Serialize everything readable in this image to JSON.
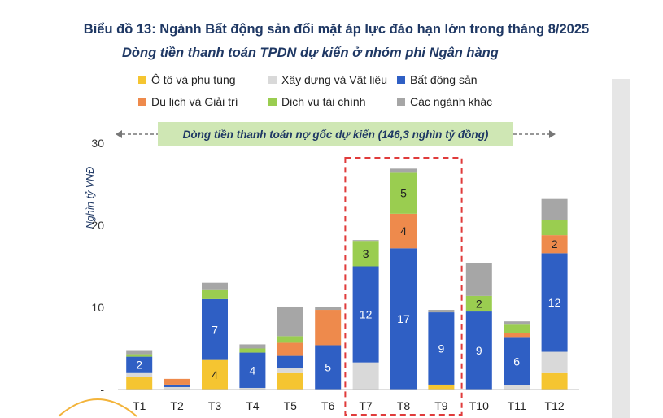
{
  "title": "Biểu đồ 13: Ngành Bất động sản đối mặt áp lực đáo hạn lớn trong tháng 8/2025",
  "subtitle": "Dòng tiền thanh toán TPDN dự kiến ở nhóm phi Ngân hàng",
  "banner_text": "Dòng tiền thanh toán nợ gốc dự kiến (146,3 nghìn tỷ đồng)",
  "highlight_months": [
    "T7",
    "T8",
    "T9"
  ],
  "legend": [
    {
      "label": "Ô tô và phụ tùng",
      "color": "#f5c531"
    },
    {
      "label": "Xây dựng và Vật liệu",
      "color": "#d9d9d9"
    },
    {
      "label": "Bất động sản",
      "color": "#2f5fc4"
    },
    {
      "label": "Du lịch và Giải trí",
      "color": "#ee8a4c"
    },
    {
      "label": "Dịch vụ tài chính",
      "color": "#9acd50"
    },
    {
      "label": "Các ngành khác",
      "color": "#a6a6a6"
    }
  ],
  "chart_data": {
    "type": "bar",
    "stacked": true,
    "title": "Dòng tiền thanh toán TPDN dự kiến ở nhóm phi Ngân hàng",
    "ylabel": "Nghìn tỷ VNĐ",
    "ylim": [
      0,
      30
    ],
    "yticks": [
      "-",
      "10",
      "20",
      "30"
    ],
    "categories": [
      "T1",
      "T2",
      "T3",
      "T4",
      "T5",
      "T6",
      "T7",
      "T8",
      "T9",
      "T10",
      "T11",
      "T12"
    ],
    "series": [
      {
        "name": "Ô tô và phụ tùng",
        "color": "#f5c531",
        "values": [
          1.5,
          0,
          3.6,
          0,
          2.0,
          0,
          0,
          0,
          0.6,
          0,
          0,
          2.0
        ]
      },
      {
        "name": "Xây dựng và Vật liệu",
        "color": "#d9d9d9",
        "values": [
          0.5,
          0.3,
          0,
          0.2,
          0.6,
          0,
          3.3,
          0,
          0,
          0,
          0.5,
          2.6
        ]
      },
      {
        "name": "Bất động sản",
        "color": "#2f5fc4",
        "values": [
          2.0,
          0.3,
          7.4,
          4.3,
          1.5,
          5.4,
          11.7,
          17.2,
          8.8,
          9.5,
          5.8,
          12.0
        ]
      },
      {
        "name": "Du lịch và Giải trí",
        "color": "#ee8a4c",
        "values": [
          0,
          0.7,
          0,
          0,
          1.6,
          4.3,
          0,
          4.2,
          0,
          0,
          0.6,
          2.2
        ]
      },
      {
        "name": "Dịch vụ tài chính",
        "color": "#9acd50",
        "values": [
          0.3,
          0,
          1.2,
          0.5,
          0.8,
          0,
          3.1,
          5.0,
          0,
          1.9,
          1.0,
          1.8
        ]
      },
      {
        "name": "Các ngành khác",
        "color": "#a6a6a6",
        "values": [
          0.5,
          0,
          0.8,
          0.5,
          3.6,
          0.3,
          0.1,
          0.5,
          0.3,
          4.0,
          0.4,
          2.6
        ]
      }
    ],
    "data_labels": [
      {
        "month": "T1",
        "series": "Bất động sản",
        "text": "2"
      },
      {
        "month": "T3",
        "series": "Ô tô và phụ tùng",
        "text": "4"
      },
      {
        "month": "T3",
        "series": "Bất động sản",
        "text": "7"
      },
      {
        "month": "T4",
        "series": "Bất động sản",
        "text": "4"
      },
      {
        "month": "T6",
        "series": "Bất động sản",
        "text": "5"
      },
      {
        "month": "T7",
        "series": "Bất động sản",
        "text": "12"
      },
      {
        "month": "T7",
        "series": "Dịch vụ tài chính",
        "text": "3"
      },
      {
        "month": "T8",
        "series": "Bất động sản",
        "text": "17"
      },
      {
        "month": "T8",
        "series": "Du lịch và Giải trí",
        "text": "4"
      },
      {
        "month": "T8",
        "series": "Dịch vụ tài chính",
        "text": "5"
      },
      {
        "month": "T9",
        "series": "Bất động sản",
        "text": "9"
      },
      {
        "month": "T10",
        "series": "Bất động sản",
        "text": "9"
      },
      {
        "month": "T10",
        "series": "Dịch vụ tài chính",
        "text": "2"
      },
      {
        "month": "T11",
        "series": "Bất động sản",
        "text": "6"
      },
      {
        "month": "T12",
        "series": "Bất động sản",
        "text": "12"
      },
      {
        "month": "T12",
        "series": "Du lịch và Giải trí",
        "text": "2"
      }
    ],
    "grid": false,
    "legend_position": "top"
  }
}
